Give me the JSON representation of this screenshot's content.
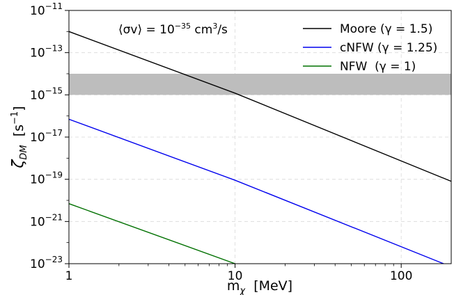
{
  "chart_data": {
    "type": "line",
    "title": "",
    "annotation": {
      "prefix": "⟨σv⟩ = 10",
      "prefix_exp": "−35",
      "unit_base": " cm",
      "unit_exp": "3",
      "unit_tail": "/s"
    },
    "xlabel": {
      "base": "m",
      "sub": "χ",
      "units": "  [MeV]"
    },
    "ylabel": {
      "base": "ζ",
      "sub": "DM",
      "units_open": "  [s",
      "units_exp": "−1",
      "units_close": "]"
    },
    "x_scale": "log",
    "y_scale": "log",
    "xlim": [
      1,
      200
    ],
    "ylim": [
      1e-23,
      1e-11
    ],
    "x_ticks": [
      {
        "value": 1,
        "label": "1"
      },
      {
        "value": 10,
        "label": "10"
      },
      {
        "value": 100,
        "label": "100"
      }
    ],
    "y_ticks": [
      {
        "value": 1e-23,
        "base": "10",
        "exp": "−23"
      },
      {
        "value": 1e-21,
        "base": "10",
        "exp": "−21"
      },
      {
        "value": 1e-19,
        "base": "10",
        "exp": "−19"
      },
      {
        "value": 1e-17,
        "base": "10",
        "exp": "−17"
      },
      {
        "value": 1e-15,
        "base": "10",
        "exp": "−15"
      },
      {
        "value": 1e-13,
        "base": "10",
        "exp": "−13"
      },
      {
        "value": 1e-11,
        "base": "10",
        "exp": "−11"
      }
    ],
    "grid": true,
    "legend_position": "top-right",
    "shaded_band": {
      "y_min": 1e-15,
      "y_max": 1e-14,
      "color": "#bdbdbd"
    },
    "series": [
      {
        "name": "Moore (γ = 1.5)",
        "color": "#000000",
        "x": [
          1,
          10,
          200
        ],
        "y": [
          1e-12,
          1.2e-15,
          8e-20
        ]
      },
      {
        "name": "cNFW (γ = 1.25)",
        "color": "#0000ee",
        "x": [
          1,
          10,
          180
        ],
        "y": [
          7e-17,
          9e-20,
          1e-23
        ]
      },
      {
        "name": "NFW  (γ = 1)",
        "color": "#007000",
        "x": [
          1,
          10
        ],
        "y": [
          7e-21,
          1e-23
        ]
      }
    ]
  }
}
